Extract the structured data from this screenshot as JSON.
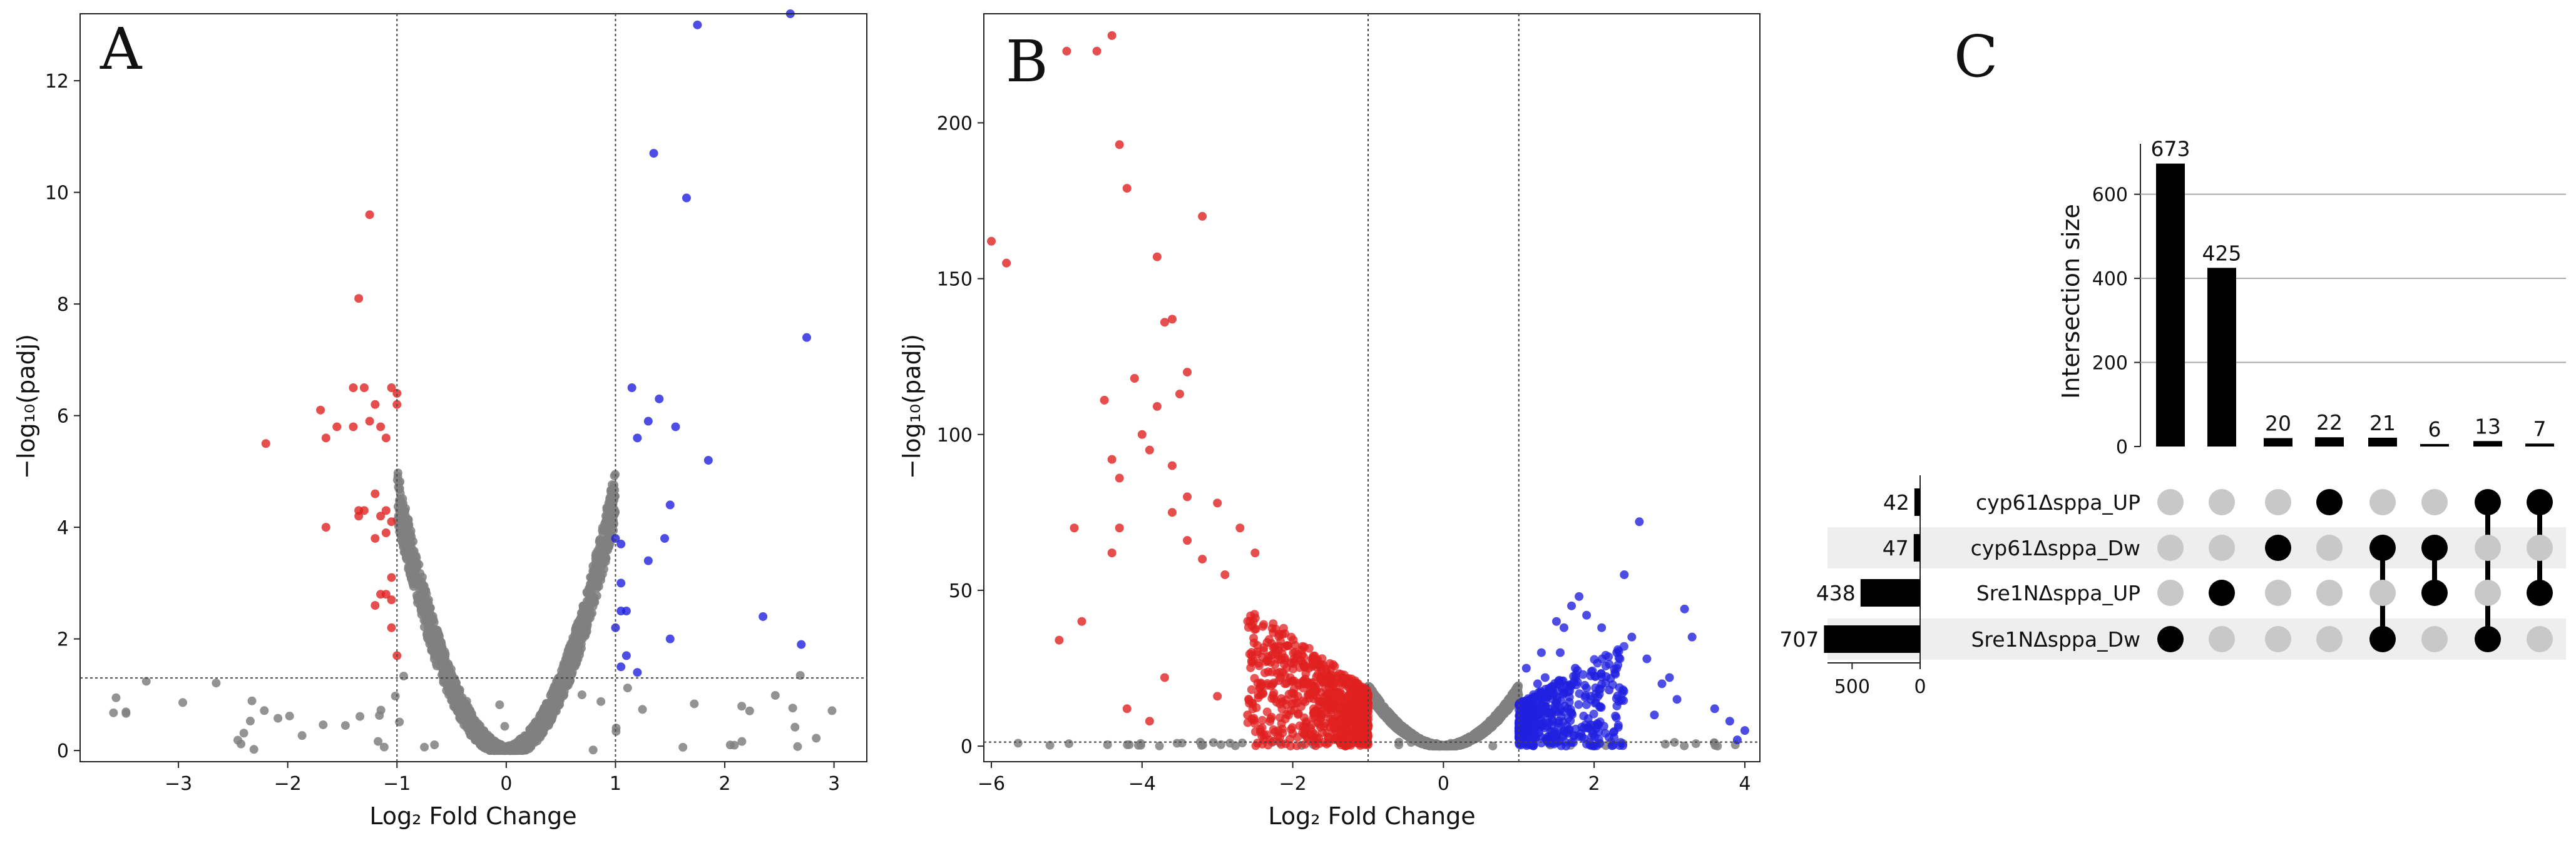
{
  "panels": {
    "a": "A",
    "b": "B",
    "c": "C"
  },
  "colors": {
    "up": "#2020e0",
    "down": "#e02020",
    "ns": "#808080",
    "dot_on": "#000000",
    "dot_off": "#c8c8c8",
    "band": "#eeeeee"
  },
  "chart_data": [
    {
      "type": "scatter",
      "panel": "A",
      "xlabel": "Log₂ Fold Change",
      "ylabel": "−log₁₀(padj)",
      "xlim": [
        -3.9,
        3.3
      ],
      "ylim": [
        -0.2,
        13.2
      ],
      "xticks": [
        -3,
        -2,
        -1,
        0,
        1,
        2,
        3
      ],
      "yticks": [
        0,
        2,
        4,
        6,
        8,
        10,
        12
      ],
      "thresholds": {
        "x": [
          -1,
          1
        ],
        "y": 1.3
      },
      "grid": false,
      "series": [
        {
          "color": "down",
          "x": [
            -2.2,
            -1.7,
            -1.65,
            -1.55,
            -1.4,
            -1.3,
            -1.25,
            -1.2,
            -1.15,
            -1.1,
            -1.05,
            -1.0,
            -1.35,
            -1.4,
            -1.3,
            -1.2,
            -1.1,
            -1.05,
            -1.15,
            -1.2,
            -1.25,
            -1.1,
            -1.05,
            -1.0,
            -1.65,
            -1.35,
            -1.35,
            -1.2,
            -1.15,
            -1.1,
            -1.05,
            -1.05,
            -1.0
          ],
          "y": [
            5.5,
            6.1,
            4.0,
            5.8,
            5.8,
            6.5,
            5.9,
            6.2,
            5.8,
            5.6,
            6.5,
            6.4,
            8.1,
            6.5,
            4.3,
            4.6,
            4.3,
            4.1,
            2.8,
            2.6,
            9.6,
            2.8,
            2.2,
            1.7,
            5.6,
            4.3,
            4.2,
            3.8,
            4.2,
            3.9,
            3.1,
            2.7,
            6.2
          ]
        },
        {
          "color": "up",
          "x": [
            1.15,
            1.35,
            1.55,
            1.65,
            1.85,
            1.75,
            2.6,
            2.75,
            1.2,
            1.3,
            1.4,
            1.5,
            1.45,
            1.3,
            1.0,
            1.05,
            1.1,
            1.05,
            1.0,
            1.05,
            1.5,
            1.1,
            1.2,
            2.35,
            2.7,
            1.05
          ],
          "y": [
            6.5,
            10.7,
            5.8,
            9.9,
            5.2,
            13.0,
            13.2,
            7.4,
            5.6,
            5.9,
            6.3,
            4.4,
            3.8,
            3.4,
            3.8,
            3.0,
            2.5,
            2.5,
            2.2,
            1.5,
            2.0,
            1.7,
            1.4,
            2.4,
            1.9,
            3.7
          ]
        }
      ]
    },
    {
      "type": "scatter",
      "panel": "B",
      "xlabel": "Log₂ Fold Change",
      "ylabel": "−log₁₀(padj)",
      "xlim": [
        -6.1,
        4.2
      ],
      "ylim": [
        -5,
        235
      ],
      "xticks": [
        -6,
        -4,
        -2,
        0,
        2,
        4
      ],
      "yticks": [
        0,
        50,
        100,
        150,
        200
      ],
      "thresholds": {
        "x": [
          -1,
          1
        ],
        "y": 1.3
      },
      "grid": false,
      "series": [
        {
          "color": "down",
          "x": [
            -6.0,
            -5.8,
            -5.0,
            -4.6,
            -4.4,
            -4.3,
            -4.2,
            -3.8,
            -3.6,
            -3.4,
            -3.2,
            -3.7,
            -4.1,
            -3.5,
            -4.5,
            -4.4,
            -4.3,
            -3.8,
            -4.9,
            -4.3,
            -3.9,
            -3.6,
            -3.4,
            -4.0,
            -3.6,
            -3.0,
            -2.7,
            -2.5,
            -3.4,
            -3.2,
            -2.9,
            -4.4,
            -4.8,
            -5.1,
            -3.7,
            -4.2,
            -3.9,
            -3.0,
            -2.6
          ],
          "y": [
            162,
            155,
            223,
            223,
            228,
            193,
            179,
            157,
            137,
            120,
            170,
            136,
            118,
            113,
            111,
            92,
            86,
            109,
            70,
            70,
            95,
            90,
            80,
            100,
            75,
            78,
            70,
            62,
            66,
            60,
            55,
            62,
            40,
            34,
            22,
            12,
            8,
            16,
            10
          ]
        },
        {
          "color": "up",
          "x": [
            1.1,
            1.3,
            1.5,
            1.7,
            1.9,
            2.1,
            2.3,
            2.5,
            2.7,
            2.9,
            3.1,
            3.3,
            3.6,
            3.8,
            4.0,
            2.6,
            2.4,
            1.8,
            1.6,
            3.2,
            3.0,
            2.2,
            1.4,
            1.2,
            1.0,
            1.05,
            2.8,
            3.9,
            1.15,
            1.25,
            1.35,
            1.45,
            1.55,
            1.65,
            1.75
          ],
          "y": [
            25,
            30,
            40,
            45,
            42,
            38,
            30,
            35,
            28,
            20,
            15,
            35,
            12,
            8,
            5,
            72,
            55,
            48,
            38,
            44,
            22,
            18,
            12,
            8,
            4,
            2,
            10,
            2,
            15,
            20,
            22,
            18,
            30,
            12,
            25
          ]
        }
      ]
    },
    {
      "type": "bar",
      "panel": "C",
      "ylabel": "Intersection size",
      "yticks": [
        0,
        200,
        400,
        600
      ],
      "ylim": [
        0,
        700
      ],
      "grid": true,
      "values": [
        673,
        425,
        20,
        22,
        21,
        6,
        13,
        7
      ],
      "sets": [
        "cyp61Δsppa_UP",
        "cyp61Δsppa_Dw",
        "Sre1NΔsppa_UP",
        "Sre1NΔsppa_Dw"
      ],
      "set_sizes": [
        42,
        47,
        438,
        707
      ],
      "set_size_ticks": [
        500,
        0
      ],
      "membership": [
        [
          3
        ],
        [
          2
        ],
        [
          1
        ],
        [
          0
        ],
        [
          1,
          3
        ],
        [
          1,
          2
        ],
        [
          0,
          3
        ],
        [
          0,
          2
        ]
      ]
    }
  ]
}
